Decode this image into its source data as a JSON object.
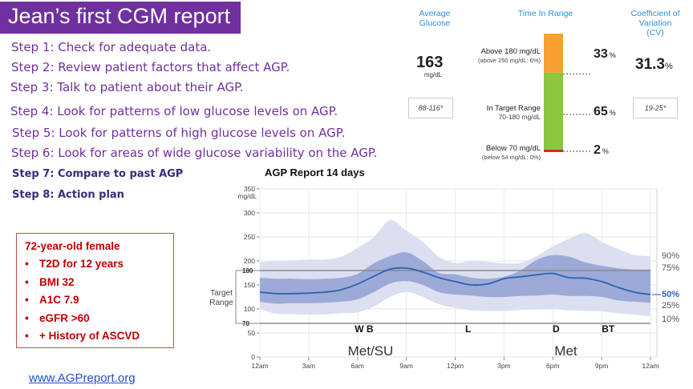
{
  "title": "Jean’s first CGM report",
  "steps": [
    "Step 1: Check for adequate data.",
    "Step 2: Review patient factors that affect AGP.",
    "Step 3: Talk to patient about their AGP.",
    "Step 4: Look for patterns of low glucose levels on AGP.",
    "Step 5: Look for patterns of high glucose levels on AGP.",
    "Step 6: Look for areas of wide glucose variability on the AGP.",
    "Step 7: Compare to past AGP",
    "Step 8:  Action plan"
  ],
  "patient": {
    "heading": "72-year-old female",
    "items": [
      "T2D  for 12 years",
      "BMI 32",
      "A1C 7.9",
      "eGFR >60",
      "+ History of ASCVD"
    ]
  },
  "link": "www.AGPreport.org",
  "metrics": {
    "avg_label": "Average Glucose",
    "avg_value": "163",
    "avg_unit": "mg/dL",
    "avg_range": "88-116*",
    "tir_label": "Time In Range",
    "above_label": "Above 180 mg/dL",
    "above_sub": "(above 250 mg/dL: 6%)",
    "above_pct": "33",
    "target_label": "In Target Range",
    "target_sub": "70-180 mg/dL",
    "target_pct": "65",
    "below_label": "Below 70 mg/dL",
    "below_sub": "(below 54 mg/dL: 0%)",
    "below_pct": "2",
    "pct_unit": "%",
    "cv_label": "Coefficient of Variation (CV)",
    "cv_value": "31.3",
    "cv_unit": "%",
    "cv_range": "19-25*",
    "colors": {
      "above": "#f5a030",
      "target": "#8cc63f",
      "below": "#d9262b",
      "accent": "#2f8ee0"
    }
  },
  "agp": {
    "title": "AGP Report  14 days",
    "target_label": "Target Range",
    "target_hi_label": "180",
    "target_lo_label": "70",
    "meal_labels": [
      "W  B",
      "L",
      "D",
      "BT"
    ],
    "med_labels": [
      "Met/SU",
      "Met"
    ]
  },
  "chart_data": {
    "type": "area",
    "title": "AGP Report  14 days",
    "xlabel": "",
    "ylabel": "mg/dL",
    "x_ticks": [
      "12am",
      "3am",
      "6am",
      "9am",
      "12pm",
      "3pm",
      "6pm",
      "9pm",
      "12am"
    ],
    "y_ticks": [
      0,
      50,
      100,
      150,
      200,
      250,
      300,
      350
    ],
    "ylim": [
      0,
      350
    ],
    "xlim_hours": [
      0,
      24
    ],
    "target_range": [
      70,
      180
    ],
    "x": [
      0,
      1,
      2,
      3,
      4,
      5,
      6,
      7,
      8,
      9,
      10,
      11,
      12,
      13,
      14,
      15,
      16,
      17,
      18,
      19,
      20,
      21,
      22,
      23,
      24
    ],
    "series": [
      {
        "name": "90%",
        "values": [
          197,
          200,
          201,
          203,
          203,
          209,
          227,
          250,
          285,
          263,
          240,
          209,
          196,
          200,
          198,
          195,
          196,
          210,
          230,
          246,
          258,
          240,
          225,
          213,
          210
        ]
      },
      {
        "name": "75%",
        "values": [
          165,
          163,
          163,
          162,
          163,
          165,
          173,
          195,
          210,
          218,
          200,
          175,
          172,
          165,
          163,
          167,
          180,
          202,
          212,
          209,
          197,
          190,
          185,
          182,
          182
        ]
      },
      {
        "name": "50%",
        "values": [
          135,
          132,
          132,
          133,
          135,
          140,
          152,
          168,
          183,
          185,
          177,
          165,
          157,
          150,
          152,
          163,
          167,
          171,
          174,
          165,
          164,
          157,
          145,
          135,
          130
        ]
      },
      {
        "name": "25%",
        "values": [
          115,
          111,
          112,
          112,
          113,
          115,
          120,
          135,
          153,
          158,
          150,
          135,
          130,
          128,
          125,
          125,
          127,
          128,
          130,
          127,
          127,
          125,
          118,
          115,
          113
        ]
      },
      {
        "name": "10%",
        "values": [
          100,
          90,
          89,
          88,
          89,
          91,
          93,
          105,
          125,
          135,
          125,
          110,
          102,
          97,
          96,
          96,
          98,
          99,
          100,
          97,
          96,
          95,
          91,
          88,
          85
        ]
      }
    ]
  }
}
